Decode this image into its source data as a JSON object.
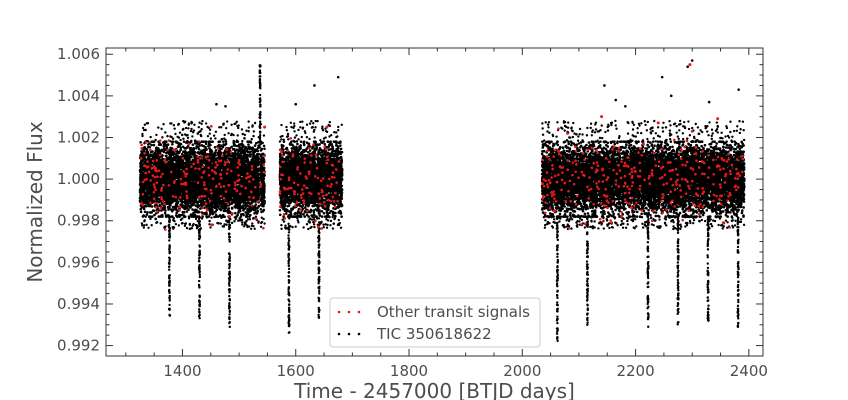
{
  "chart_data": {
    "type": "scatter",
    "title": "",
    "xlabel": "Time - 2457000 [BTJD days]",
    "ylabel": "Normalized Flux",
    "xlim": [
      1265,
      2425
    ],
    "ylim": [
      0.9915,
      1.0063
    ],
    "x_major_ticks": [
      1400,
      1600,
      1800,
      2000,
      2200,
      2400
    ],
    "x_tick_labels": [
      "1400",
      "1600",
      "1800",
      "2000",
      "2200",
      "2400"
    ],
    "y_major_ticks": [
      0.992,
      0.994,
      0.996,
      0.998,
      1.0,
      1.002,
      1.004,
      1.006
    ],
    "y_tick_labels": [
      "0.992",
      "0.994",
      "0.996",
      "0.998",
      "1.000",
      "1.002",
      "1.004",
      "1.006"
    ],
    "grid": false,
    "legend_position": "bottom-center",
    "series": [
      {
        "name": "Other transit signals",
        "color": "#e31a1c",
        "marker": "dot",
        "segments": [
          [
            1325,
            1535
          ],
          [
            1538,
            1545
          ],
          [
            1572,
            1682
          ],
          [
            2035,
            2392
          ]
        ],
        "baseline": 1.0,
        "scatter": 0.0009,
        "outliers": [
          {
            "x": 1452,
            "y": 0.9978
          },
          {
            "x": 1483,
            "y": 0.9982
          },
          {
            "x": 1530,
            "y": 0.9981
          },
          {
            "x": 1545,
            "y": 1.0025
          },
          {
            "x": 1640,
            "y": 0.9977
          },
          {
            "x": 1655,
            "y": 1.0025
          },
          {
            "x": 2140,
            "y": 1.003
          },
          {
            "x": 2240,
            "y": 1.0027
          },
          {
            "x": 2296,
            "y": 1.0055
          },
          {
            "x": 2345,
            "y": 1.0029
          },
          {
            "x": 2355,
            "y": 0.9979
          }
        ]
      },
      {
        "name": "TIC 350618622",
        "color": "#000000",
        "marker": "dot",
        "segments": [
          [
            1325,
            1535
          ],
          [
            1538,
            1545
          ],
          [
            1572,
            1682
          ],
          [
            2035,
            2392
          ]
        ],
        "baseline": 1.0,
        "scatter": 0.0009,
        "transits": [
          {
            "x": 1377,
            "depth": 0.9934
          },
          {
            "x": 1430,
            "depth": 0.993
          },
          {
            "x": 1483,
            "depth": 0.9928
          },
          {
            "x": 1588,
            "depth": 0.9926
          },
          {
            "x": 1641,
            "depth": 0.9932
          },
          {
            "x": 2062,
            "depth": 0.9922
          },
          {
            "x": 2115,
            "depth": 0.993
          },
          {
            "x": 2222,
            "depth": 0.9928
          },
          {
            "x": 2275,
            "depth": 0.993
          },
          {
            "x": 2328,
            "depth": 0.9932
          },
          {
            "x": 2381,
            "depth": 0.9927
          }
        ],
        "flare": {
          "x": 1537,
          "peak": 1.0056
        },
        "outliers": [
          {
            "x": 1460,
            "y": 1.0036
          },
          {
            "x": 1476,
            "y": 1.0035
          },
          {
            "x": 1633,
            "y": 1.0045
          },
          {
            "x": 1675,
            "y": 1.0049
          },
          {
            "x": 1600,
            "y": 1.0036
          },
          {
            "x": 2145,
            "y": 1.0045
          },
          {
            "x": 2182,
            "y": 1.0035
          },
          {
            "x": 2247,
            "y": 1.0049
          },
          {
            "x": 2263,
            "y": 1.004
          },
          {
            "x": 2292,
            "y": 1.0054
          },
          {
            "x": 2300,
            "y": 1.0057
          },
          {
            "x": 2382,
            "y": 1.0043
          },
          {
            "x": 2165,
            "y": 1.0038
          },
          {
            "x": 2330,
            "y": 1.0037
          },
          {
            "x": 1640,
            "y": 0.9972
          }
        ]
      }
    ]
  }
}
